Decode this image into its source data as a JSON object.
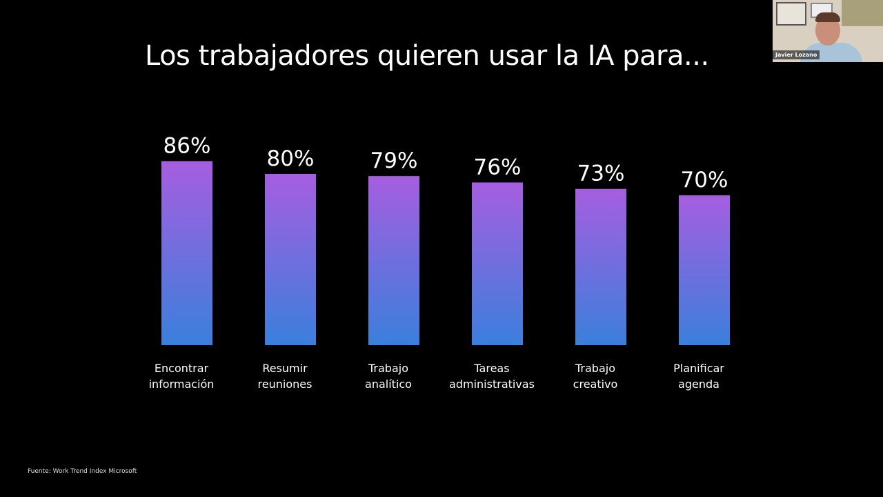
{
  "chart_data": {
    "type": "bar",
    "title": "Los trabajadores quieren usar la IA para...",
    "categories": [
      [
        "Encontrar",
        "información"
      ],
      [
        "Resumir",
        "reuniones"
      ],
      [
        "Trabajo",
        "analítico"
      ],
      [
        "Tareas",
        "administrativas"
      ],
      [
        "Trabajo",
        "creativo"
      ],
      [
        "Planificar",
        "agenda"
      ]
    ],
    "values": [
      86,
      80,
      79,
      76,
      73,
      70
    ],
    "value_labels": [
      "86%",
      "80%",
      "79%",
      "76%",
      "73%",
      "70%"
    ],
    "ylim": [
      0,
      100
    ],
    "grid": false,
    "colors": {
      "gradient_top": "#a65ee0",
      "gradient_bottom": "#3a7fdc",
      "background": "#000000"
    }
  },
  "source": "Fuente: Work Trend Index Microsoft",
  "video_tile": {
    "participant_name": "Javier Lozano"
  }
}
